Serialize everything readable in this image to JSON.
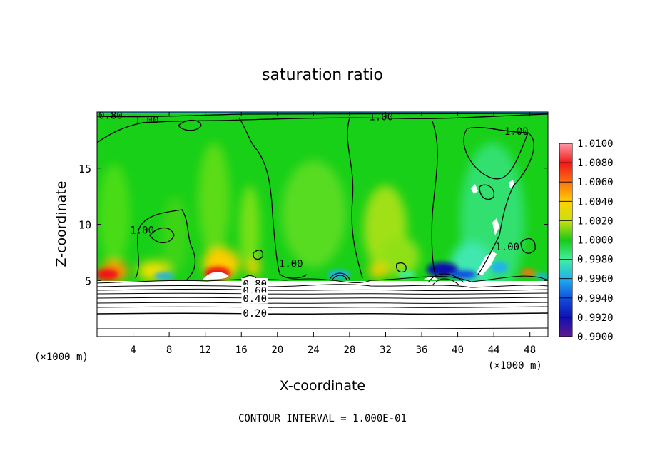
{
  "chart_data": {
    "type": "heatmap",
    "title": "saturation ratio",
    "xlabel": "X-coordinate",
    "ylabel": "Z-coordinate",
    "x_unit_left": "(×1000 m)",
    "x_unit_right": "(×1000 m)",
    "xlim": [
      0,
      50
    ],
    "ylim": [
      0,
      20
    ],
    "x_ticks": [
      4,
      8,
      12,
      16,
      20,
      24,
      28,
      32,
      36,
      40,
      44,
      48
    ],
    "y_ticks": [
      5,
      10,
      15
    ],
    "footer": "CONTOUR INTERVAL = 1.000E-01",
    "colorbar": {
      "labels": [
        "1.0100",
        "1.0080",
        "1.0060",
        "1.0040",
        "1.0020",
        "1.0000",
        "0.9980",
        "0.9960",
        "0.9940",
        "0.9920",
        "0.9900"
      ],
      "colors": [
        "#ff9aa8",
        "#f01818",
        "#ff7010",
        "#ffd000",
        "#c8e010",
        "#18c818",
        "#40f0a0",
        "#20b0f0",
        "#1050e0",
        "#1010b0",
        "#601890"
      ]
    },
    "contour_labels": [
      {
        "text": "0.80",
        "x": 1.5,
        "z": 19.7
      },
      {
        "text": "1.00",
        "x": 5.5,
        "z": 19.3
      },
      {
        "text": "1.00",
        "x": 31.5,
        "z": 19.6
      },
      {
        "text": "1.00",
        "x": 46.5,
        "z": 18.3
      },
      {
        "text": "1.00",
        "x": 5.0,
        "z": 9.5
      },
      {
        "text": "1.00",
        "x": 21.5,
        "z": 6.5
      },
      {
        "text": "1.00",
        "x": 45.5,
        "z": 8.0
      },
      {
        "text": "0.80",
        "x": 17.5,
        "z": 4.7
      },
      {
        "text": "0.60",
        "x": 17.5,
        "z": 4.1
      },
      {
        "text": "0.40",
        "x": 17.5,
        "z": 3.4
      },
      {
        "text": "0.20",
        "x": 17.5,
        "z": 2.1
      }
    ]
  }
}
